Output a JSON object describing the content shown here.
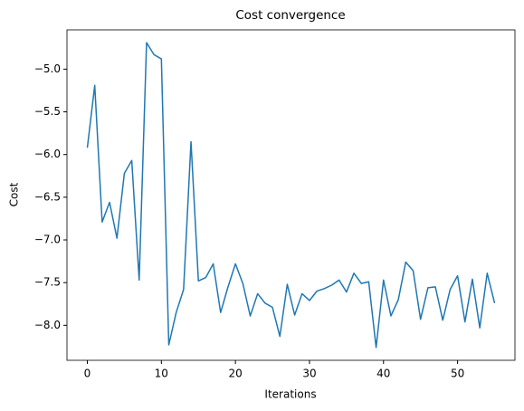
{
  "chart_data": {
    "type": "line",
    "title": "Cost convergence",
    "xlabel": "Iterations",
    "ylabel": "Cost",
    "x": [
      0,
      1,
      2,
      3,
      4,
      5,
      6,
      7,
      8,
      9,
      10,
      11,
      12,
      13,
      14,
      15,
      16,
      17,
      18,
      19,
      20,
      21,
      22,
      23,
      24,
      25,
      26,
      27,
      28,
      29,
      30,
      31,
      32,
      33,
      34,
      35,
      36,
      37,
      38,
      39,
      40,
      41,
      42,
      43,
      44,
      45,
      46,
      47,
      48,
      49,
      50,
      51,
      52,
      53,
      54,
      55
    ],
    "series": [
      {
        "name": "cost",
        "color": "#1f77b4",
        "values": [
          -5.92,
          -5.19,
          -6.79,
          -6.56,
          -6.98,
          -6.22,
          -6.07,
          -7.47,
          -4.69,
          -4.83,
          -4.88,
          -8.23,
          -7.85,
          -7.58,
          -5.85,
          -7.48,
          -7.44,
          -7.28,
          -7.85,
          -7.55,
          -7.28,
          -7.51,
          -7.89,
          -7.63,
          -7.74,
          -7.79,
          -8.13,
          -7.52,
          -7.88,
          -7.63,
          -7.71,
          -7.6,
          -7.57,
          -7.53,
          -7.47,
          -7.61,
          -7.39,
          -7.51,
          -7.49,
          -8.26,
          -7.47,
          -7.89,
          -7.7,
          -7.26,
          -7.36,
          -7.93,
          -7.56,
          -7.55,
          -7.94,
          -7.58,
          -7.42,
          -7.96,
          -7.46,
          -8.03,
          -7.39,
          -7.74
        ]
      }
    ],
    "xlim": [
      -2.75,
      57.75
    ],
    "xticks": [
      0,
      10,
      20,
      30,
      40,
      50
    ],
    "ylim": [
      -8.41,
      -4.54
    ],
    "yticks": [
      {
        "value": -5.0,
        "label": "−5.0"
      },
      {
        "value": -5.5,
        "label": "−5.5"
      },
      {
        "value": -6.0,
        "label": "−6.0"
      },
      {
        "value": -6.5,
        "label": "−6.5"
      },
      {
        "value": -7.0,
        "label": "−7.0"
      },
      {
        "value": -7.5,
        "label": "−7.5"
      },
      {
        "value": -8.0,
        "label": "−8.0"
      }
    ]
  }
}
